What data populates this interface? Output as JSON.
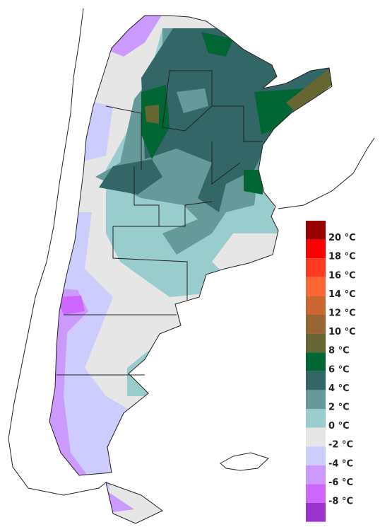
{
  "legend": {
    "colors": [
      "#990000",
      "#ff0000",
      "#ff3b1f",
      "#ff6633",
      "#cc6633",
      "#996633",
      "#666633",
      "#006633",
      "#336666",
      "#669999",
      "#99cccc",
      "#e6e6e6",
      "#ccccff",
      "#cc99ff",
      "#cc66ff",
      "#9933cc"
    ],
    "labels": [
      "20 °C",
      "18 °C",
      "16 °C",
      "14 °C",
      "12 °C",
      "10 °C",
      "8 °C",
      "6 °C",
      "4 °C",
      "2 °C",
      "0 °C",
      "-2 °C",
      "-4 °C",
      "-6 °C",
      "-8 °C"
    ]
  }
}
